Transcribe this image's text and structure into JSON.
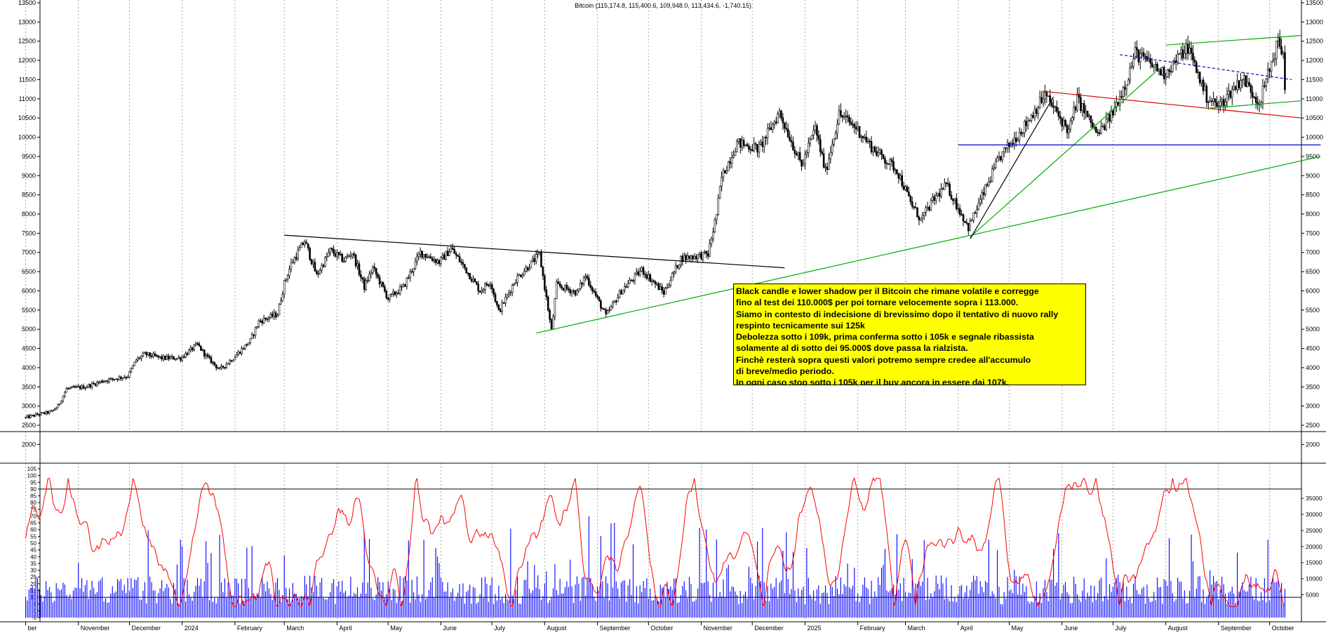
{
  "chart_data": [
    {
      "type": "candlestick",
      "title": "Bitcoin (115,174.8, 115,400.6, 109,948.0, 113,434.6, -1,740.15)",
      "instrument": "Bitcoin",
      "last_bar": {
        "open": 115174.8,
        "high": 115400.6,
        "low": 109948.0,
        "close": 113434.6,
        "change": -1740.15
      },
      "y_axis_labels": [
        "13500",
        "13000",
        "12500",
        "12000",
        "11500",
        "11000",
        "10500",
        "10000",
        "9500",
        "9000",
        "8500",
        "8000",
        "7500",
        "7000",
        "6500",
        "6000",
        "5500",
        "5000",
        "4500",
        "4000",
        "3500",
        "3000",
        "2500",
        "2000"
      ],
      "ylim": [
        19000,
        135000
      ],
      "grid": "vertical dotted lines at month starts",
      "price_path": [
        [
          "2023-10-01",
          27000
        ],
        [
          "2023-10-08",
          27800
        ],
        [
          "2023-10-16",
          28500
        ],
        [
          "2023-10-20",
          30000
        ],
        [
          "2023-10-25",
          34500
        ],
        [
          "2023-11-05",
          35000
        ],
        [
          "2023-11-15",
          36500
        ],
        [
          "2023-11-30",
          37800
        ],
        [
          "2023-12-05",
          42000
        ],
        [
          "2023-12-10",
          43500
        ],
        [
          "2023-12-20",
          42500
        ],
        [
          "2023-12-31",
          42500
        ],
        [
          "2024-01-10",
          46000
        ],
        [
          "2024-01-15",
          43000
        ],
        [
          "2024-01-23",
          39500
        ],
        [
          "2024-01-31",
          42500
        ],
        [
          "2024-02-10",
          47000
        ],
        [
          "2024-02-15",
          52000
        ],
        [
          "2024-02-26",
          54000
        ],
        [
          "2024-03-01",
          62000
        ],
        [
          "2024-03-05",
          67000
        ],
        [
          "2024-03-13",
          73000
        ],
        [
          "2024-03-20",
          64000
        ],
        [
          "2024-03-28",
          70500
        ],
        [
          "2024-04-05",
          68000
        ],
        [
          "2024-04-10",
          70000
        ],
        [
          "2024-04-17",
          61000
        ],
        [
          "2024-04-22",
          66000
        ],
        [
          "2024-05-01",
          58000
        ],
        [
          "2024-05-10",
          61000
        ],
        [
          "2024-05-20",
          70000
        ],
        [
          "2024-05-31",
          67500
        ],
        [
          "2024-06-07",
          71000
        ],
        [
          "2024-06-15",
          66000
        ],
        [
          "2024-06-24",
          60000
        ],
        [
          "2024-06-30",
          62500
        ],
        [
          "2024-07-05",
          54500
        ],
        [
          "2024-07-15",
          63000
        ],
        [
          "2024-07-29",
          69500
        ],
        [
          "2024-08-05",
          49500
        ],
        [
          "2024-08-08",
          61500
        ],
        [
          "2024-08-20",
          59500
        ],
        [
          "2024-08-25",
          64000
        ],
        [
          "2024-09-06",
          53500
        ],
        [
          "2024-09-15",
          60000
        ],
        [
          "2024-09-27",
          65500
        ],
        [
          "2024-10-10",
          59500
        ],
        [
          "2024-10-20",
          68500
        ],
        [
          "2024-10-28",
          69000
        ],
        [
          "2024-11-05",
          69500
        ],
        [
          "2024-11-10",
          80000
        ],
        [
          "2024-11-13",
          89500
        ],
        [
          "2024-11-22",
          98500
        ],
        [
          "2024-12-05",
          97000
        ],
        [
          "2024-12-17",
          106500
        ],
        [
          "2024-12-30",
          92500
        ],
        [
          "2025-01-07",
          102500
        ],
        [
          "2025-01-13",
          91000
        ],
        [
          "2025-01-21",
          106000
        ],
        [
          "2025-01-31",
          102500
        ],
        [
          "2025-02-10",
          97000
        ],
        [
          "2025-02-24",
          91500
        ],
        [
          "2025-03-04",
          83000
        ],
        [
          "2025-03-10",
          78500
        ],
        [
          "2025-03-18",
          84000
        ],
        [
          "2025-03-25",
          87500
        ],
        [
          "2025-04-07",
          76500
        ],
        [
          "2025-04-15",
          84500
        ],
        [
          "2025-04-25",
          94500
        ],
        [
          "2025-05-10",
          103000
        ],
        [
          "2025-05-22",
          111000
        ],
        [
          "2025-06-05",
          101500
        ],
        [
          "2025-06-10",
          110000
        ],
        [
          "2025-06-22",
          100500
        ],
        [
          "2025-07-01",
          106500
        ],
        [
          "2025-07-10",
          116000
        ],
        [
          "2025-07-14",
          122000
        ],
        [
          "2025-07-31",
          116500
        ],
        [
          "2025-08-14",
          123500
        ],
        [
          "2025-08-25",
          110500
        ],
        [
          "2025-09-01",
          108000
        ],
        [
          "2025-09-15",
          115500
        ],
        [
          "2025-09-25",
          109000
        ],
        [
          "2025-10-06",
          125000
        ],
        [
          "2025-10-09",
          121500
        ],
        [
          "2025-10-10",
          113400
        ]
      ],
      "x_axis_labels": [
        {
          "date": "2023-10-01",
          "label": "ber"
        },
        {
          "date": "2023-11-01",
          "label": "November"
        },
        {
          "date": "2023-12-01",
          "label": "December"
        },
        {
          "date": "2024-01-01",
          "label": "2024"
        },
        {
          "date": "2024-02-01",
          "label": "February"
        },
        {
          "date": "2024-03-01",
          "label": "March"
        },
        {
          "date": "2024-04-01",
          "label": "April"
        },
        {
          "date": "2024-05-01",
          "label": "May"
        },
        {
          "date": "2024-06-01",
          "label": "June"
        },
        {
          "date": "2024-07-01",
          "label": "July"
        },
        {
          "date": "2024-08-01",
          "label": "August"
        },
        {
          "date": "2024-09-01",
          "label": "September"
        },
        {
          "date": "2024-10-01",
          "label": "October"
        },
        {
          "date": "2024-11-01",
          "label": "November"
        },
        {
          "date": "2024-12-01",
          "label": "December"
        },
        {
          "date": "2025-01-01",
          "label": "2025"
        },
        {
          "date": "2025-02-01",
          "label": "February"
        },
        {
          "date": "2025-03-01",
          "label": "March"
        },
        {
          "date": "2025-04-01",
          "label": "April"
        },
        {
          "date": "2025-05-01",
          "label": "May"
        },
        {
          "date": "2025-06-01",
          "label": "June"
        },
        {
          "date": "2025-07-01",
          "label": "July"
        },
        {
          "date": "2025-08-01",
          "label": "August"
        },
        {
          "date": "2025-09-01",
          "label": "September"
        },
        {
          "date": "2025-10-01",
          "label": "October"
        }
      ],
      "trendlines": [
        {
          "color": "#000000",
          "style": "solid",
          "from": [
            "2024-03-01",
            74500
          ],
          "to": [
            "2024-12-20",
            66000
          ]
        },
        {
          "color": "#00aa00",
          "style": "solid",
          "from": [
            "2024-07-27",
            49000
          ],
          "to": [
            "2025-10-31",
            95000
          ]
        },
        {
          "color": "#00aa00",
          "style": "solid",
          "from": [
            "2025-04-08",
            74000
          ],
          "to": [
            "2025-07-26",
            117000
          ]
        },
        {
          "color": "#000000",
          "style": "solid",
          "from": [
            "2025-04-08",
            73500
          ],
          "to": [
            "2025-05-27",
            110500
          ]
        },
        {
          "color": "#0000cc",
          "style": "solid",
          "from": [
            "2025-04-01",
            98000
          ],
          "to": [
            "2025-10-31",
            98000
          ]
        },
        {
          "color": "#dd0000",
          "style": "solid",
          "from": [
            "2025-05-20",
            112000
          ],
          "to": [
            "2025-10-20",
            105000
          ]
        },
        {
          "color": "#0000cc",
          "style": "dashed",
          "from": [
            "2025-07-05",
            121500
          ],
          "to": [
            "2025-10-14",
            115000
          ]
        },
        {
          "color": "#00aa00",
          "style": "solid",
          "from": [
            "2025-08-01",
            124000
          ],
          "to": [
            "2025-10-20",
            126500
          ]
        },
        {
          "color": "#00aa00",
          "style": "solid",
          "from": [
            "2025-08-25",
            107500
          ],
          "to": [
            "2025-10-20",
            109500
          ]
        }
      ],
      "annotation": {
        "lines": [
          "Black candle e lower shadow per il Bitcoin che rimane volatile e corregge",
          "fino al test dei 110.000$ per poi tornare velocemente sopra i 113.000.",
          "Siamo in contesto di indecisione di brevissimo dopo il tentativo di nuovo rally",
          "respinto tecnicamente sui 125k",
          "Debolezza sotto i 109k, prima conferma sotto i 105k e segnale ribassista",
          "solamente al di sotto dei 95.000$ dove passa la rialzista.",
          "Finchè resterà sopra questi valori potremo sempre credee all'accumulo",
          "di breve/medio periodo.",
          "In ogni caso stop sotto i 105k per il buy ancora in essere dai 107k."
        ],
        "background": "#ffff00"
      }
    },
    {
      "type": "line+bar",
      "series": [
        {
          "kind": "line",
          "color": "#ff0000",
          "range": [
            0,
            100
          ]
        },
        {
          "kind": "bar",
          "color": "#0000ff",
          "range": [
            0,
            40000
          ]
        }
      ],
      "left_axis_labels": [
        "105",
        "100",
        "95",
        "90",
        "85",
        "80",
        "75",
        "70",
        "65",
        "60",
        "55",
        "50",
        "45",
        "40",
        "35",
        "30",
        "25",
        "20",
        "15",
        "10",
        "5",
        "0",
        "-5"
      ],
      "right_axis_labels": [
        "35000",
        "30000",
        "25000",
        "20000",
        "15000",
        "10000",
        "5000"
      ],
      "reference_lines": [
        90,
        10
      ]
    }
  ],
  "colors": {
    "candle": "#000000",
    "oscillator": "#ff0000",
    "volume": "#0000ff",
    "annotation_bg": "#ffff00"
  }
}
